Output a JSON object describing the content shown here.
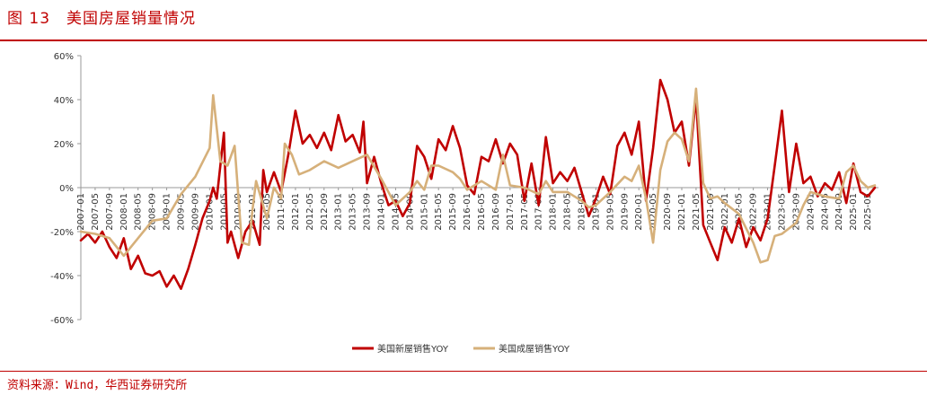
{
  "header": {
    "title": "图 13　美国房屋销量情况",
    "accent_color": "#c00000"
  },
  "footer": {
    "source": "资料来源：Wind，华西证券研究所"
  },
  "chart_data": {
    "type": "line",
    "title": "",
    "xlabel": "",
    "ylabel": "",
    "ylim": [
      -60,
      60
    ],
    "y_ticks": [
      -60,
      -40,
      -20,
      0,
      20,
      40,
      60
    ],
    "y_tick_suffix": "%",
    "grid": false,
    "legend_position": "bottom",
    "x_start": "2007-01",
    "x_tick_step_months": 4,
    "x_ticks": [
      "2007-01",
      "2007-05",
      "2007-09",
      "2008-01",
      "2008-05",
      "2008-09",
      "2009-01",
      "2009-05",
      "2009-09",
      "2010-01",
      "2010-05",
      "2010-09",
      "2011-01",
      "2011-05",
      "2011-09",
      "2012-01",
      "2012-05",
      "2012-09",
      "2013-01",
      "2013-05",
      "2013-09",
      "2014-01",
      "2014-05",
      "2014-09",
      "2015-01",
      "2015-05",
      "2015-09",
      "2016-01",
      "2016-05",
      "2016-09",
      "2017-01",
      "2017-05",
      "2017-09",
      "2018-01",
      "2018-05",
      "2018-09",
      "2019-01",
      "2019-05",
      "2019-09",
      "2020-01",
      "2020-05",
      "2020-09",
      "2021-01",
      "2021-05",
      "2021-09",
      "2022-01",
      "2022-05",
      "2022-09",
      "2023-01",
      "2023-05",
      "2023-09",
      "2024-01",
      "2024-05",
      "2024-09",
      "2025-01",
      "2025-05"
    ],
    "series": [
      {
        "name": "美国新屋销售YOY",
        "color": "#c00000",
        "anchors": [
          [
            "2007-01",
            -24
          ],
          [
            "2007-03",
            -21
          ],
          [
            "2007-05",
            -25
          ],
          [
            "2007-07",
            -20
          ],
          [
            "2007-09",
            -27
          ],
          [
            "2007-11",
            -32
          ],
          [
            "2008-01",
            -23
          ],
          [
            "2008-03",
            -37
          ],
          [
            "2008-05",
            -31
          ],
          [
            "2008-07",
            -39
          ],
          [
            "2008-09",
            -40
          ],
          [
            "2008-11",
            -38
          ],
          [
            "2009-01",
            -45
          ],
          [
            "2009-03",
            -40
          ],
          [
            "2009-05",
            -46
          ],
          [
            "2009-07",
            -37
          ],
          [
            "2009-09",
            -26
          ],
          [
            "2009-11",
            -14
          ],
          [
            "2010-01",
            -6
          ],
          [
            "2010-02",
            0
          ],
          [
            "2010-03",
            -5
          ],
          [
            "2010-05",
            25
          ],
          [
            "2010-06",
            -25
          ],
          [
            "2010-07",
            -20
          ],
          [
            "2010-09",
            -32
          ],
          [
            "2010-11",
            -20
          ],
          [
            "2011-01",
            -15
          ],
          [
            "2011-03",
            -26
          ],
          [
            "2011-04",
            8
          ],
          [
            "2011-05",
            -2
          ],
          [
            "2011-07",
            7
          ],
          [
            "2011-09",
            -2
          ],
          [
            "2011-11",
            15
          ],
          [
            "2012-01",
            35
          ],
          [
            "2012-03",
            20
          ],
          [
            "2012-05",
            24
          ],
          [
            "2012-07",
            18
          ],
          [
            "2012-09",
            25
          ],
          [
            "2012-11",
            17
          ],
          [
            "2013-01",
            33
          ],
          [
            "2013-03",
            21
          ],
          [
            "2013-05",
            24
          ],
          [
            "2013-07",
            16
          ],
          [
            "2013-08",
            30
          ],
          [
            "2013-09",
            2
          ],
          [
            "2013-11",
            14
          ],
          [
            "2014-01",
            2
          ],
          [
            "2014-03",
            -8
          ],
          [
            "2014-05",
            -6
          ],
          [
            "2014-07",
            -13
          ],
          [
            "2014-09",
            -7
          ],
          [
            "2014-11",
            19
          ],
          [
            "2015-01",
            14
          ],
          [
            "2015-03",
            4
          ],
          [
            "2015-05",
            22
          ],
          [
            "2015-07",
            17
          ],
          [
            "2015-09",
            28
          ],
          [
            "2015-11",
            18
          ],
          [
            "2016-01",
            1
          ],
          [
            "2016-03",
            -3
          ],
          [
            "2016-05",
            14
          ],
          [
            "2016-07",
            12
          ],
          [
            "2016-09",
            22
          ],
          [
            "2016-11",
            11
          ],
          [
            "2017-01",
            20
          ],
          [
            "2017-03",
            15
          ],
          [
            "2017-05",
            -6
          ],
          [
            "2017-07",
            11
          ],
          [
            "2017-09",
            -8
          ],
          [
            "2017-11",
            23
          ],
          [
            "2018-01",
            2
          ],
          [
            "2018-03",
            7
          ],
          [
            "2018-05",
            3
          ],
          [
            "2018-07",
            9
          ],
          [
            "2018-09",
            -2
          ],
          [
            "2018-11",
            -13
          ],
          [
            "2019-01",
            -5
          ],
          [
            "2019-03",
            5
          ],
          [
            "2019-05",
            -3
          ],
          [
            "2019-07",
            19
          ],
          [
            "2019-09",
            25
          ],
          [
            "2019-11",
            15
          ],
          [
            "2020-01",
            30
          ],
          [
            "2020-03",
            -6
          ],
          [
            "2020-05",
            18
          ],
          [
            "2020-07",
            49
          ],
          [
            "2020-09",
            40
          ],
          [
            "2020-11",
            25
          ],
          [
            "2021-01",
            30
          ],
          [
            "2021-03",
            10
          ],
          [
            "2021-05",
            41
          ],
          [
            "2021-07",
            -17
          ],
          [
            "2021-09",
            -25
          ],
          [
            "2021-11",
            -33
          ],
          [
            "2022-01",
            -18
          ],
          [
            "2022-03",
            -25
          ],
          [
            "2022-05",
            -14
          ],
          [
            "2022-07",
            -27
          ],
          [
            "2022-09",
            -18
          ],
          [
            "2022-11",
            -24
          ],
          [
            "2023-01",
            -14
          ],
          [
            "2023-03",
            10
          ],
          [
            "2023-05",
            35
          ],
          [
            "2023-07",
            -2
          ],
          [
            "2023-09",
            20
          ],
          [
            "2023-11",
            2
          ],
          [
            "2024-01",
            5
          ],
          [
            "2024-03",
            -4
          ],
          [
            "2024-05",
            2
          ],
          [
            "2024-07",
            -1
          ],
          [
            "2024-09",
            7
          ],
          [
            "2024-11",
            -7
          ],
          [
            "2025-01",
            11
          ],
          [
            "2025-03",
            -2
          ],
          [
            "2025-05",
            -4
          ],
          [
            "2025-07",
            0
          ]
        ]
      },
      {
        "name": "美国成屋销售YOY",
        "color": "#d6b07a",
        "anchors": [
          [
            "2007-01",
            -20
          ],
          [
            "2007-05",
            -21
          ],
          [
            "2007-09",
            -23
          ],
          [
            "2008-01",
            -31
          ],
          [
            "2008-05",
            -23
          ],
          [
            "2008-09",
            -15
          ],
          [
            "2009-01",
            -14
          ],
          [
            "2009-05",
            -3
          ],
          [
            "2009-09",
            5
          ],
          [
            "2010-01",
            18
          ],
          [
            "2010-02",
            42
          ],
          [
            "2010-04",
            12
          ],
          [
            "2010-06",
            10
          ],
          [
            "2010-08",
            19
          ],
          [
            "2010-10",
            -25
          ],
          [
            "2010-12",
            -26
          ],
          [
            "2011-01",
            -10
          ],
          [
            "2011-02",
            3
          ],
          [
            "2011-05",
            -14
          ],
          [
            "2011-07",
            0
          ],
          [
            "2011-09",
            -5
          ],
          [
            "2011-10",
            20
          ],
          [
            "2011-12",
            15
          ],
          [
            "2012-02",
            6
          ],
          [
            "2012-05",
            8
          ],
          [
            "2012-09",
            12
          ],
          [
            "2013-01",
            9
          ],
          [
            "2013-05",
            12
          ],
          [
            "2013-09",
            15
          ],
          [
            "2014-01",
            4
          ],
          [
            "2014-05",
            -8
          ],
          [
            "2014-09",
            -2
          ],
          [
            "2014-11",
            3
          ],
          [
            "2015-01",
            -1
          ],
          [
            "2015-03",
            10
          ],
          [
            "2015-05",
            10
          ],
          [
            "2015-09",
            7
          ],
          [
            "2015-11",
            4
          ],
          [
            "2016-01",
            -1
          ],
          [
            "2016-05",
            3
          ],
          [
            "2016-09",
            -1
          ],
          [
            "2016-11",
            15
          ],
          [
            "2017-01",
            1
          ],
          [
            "2017-05",
            0
          ],
          [
            "2017-09",
            -3
          ],
          [
            "2017-11",
            3
          ],
          [
            "2018-01",
            -2
          ],
          [
            "2018-05",
            -2
          ],
          [
            "2018-09",
            -6
          ],
          [
            "2018-11",
            -9
          ],
          [
            "2019-01",
            -8
          ],
          [
            "2019-05",
            -2
          ],
          [
            "2019-09",
            5
          ],
          [
            "2019-11",
            3
          ],
          [
            "2020-01",
            10
          ],
          [
            "2020-03",
            -5
          ],
          [
            "2020-05",
            -25
          ],
          [
            "2020-07",
            8
          ],
          [
            "2020-09",
            21
          ],
          [
            "2020-11",
            25
          ],
          [
            "2021-01",
            22
          ],
          [
            "2021-03",
            12
          ],
          [
            "2021-05",
            45
          ],
          [
            "2021-07",
            2
          ],
          [
            "2021-09",
            -5
          ],
          [
            "2021-11",
            -4
          ],
          [
            "2022-01",
            -7
          ],
          [
            "2022-05",
            -12
          ],
          [
            "2022-09",
            -25
          ],
          [
            "2022-11",
            -34
          ],
          [
            "2023-01",
            -33
          ],
          [
            "2023-03",
            -22
          ],
          [
            "2023-05",
            -21
          ],
          [
            "2023-09",
            -16
          ],
          [
            "2023-11",
            -8
          ],
          [
            "2024-01",
            -2
          ],
          [
            "2024-05",
            -4
          ],
          [
            "2024-09",
            -5
          ],
          [
            "2024-11",
            7
          ],
          [
            "2025-01",
            10
          ],
          [
            "2025-03",
            3
          ],
          [
            "2025-05",
            0
          ],
          [
            "2025-07",
            1
          ]
        ]
      }
    ]
  }
}
